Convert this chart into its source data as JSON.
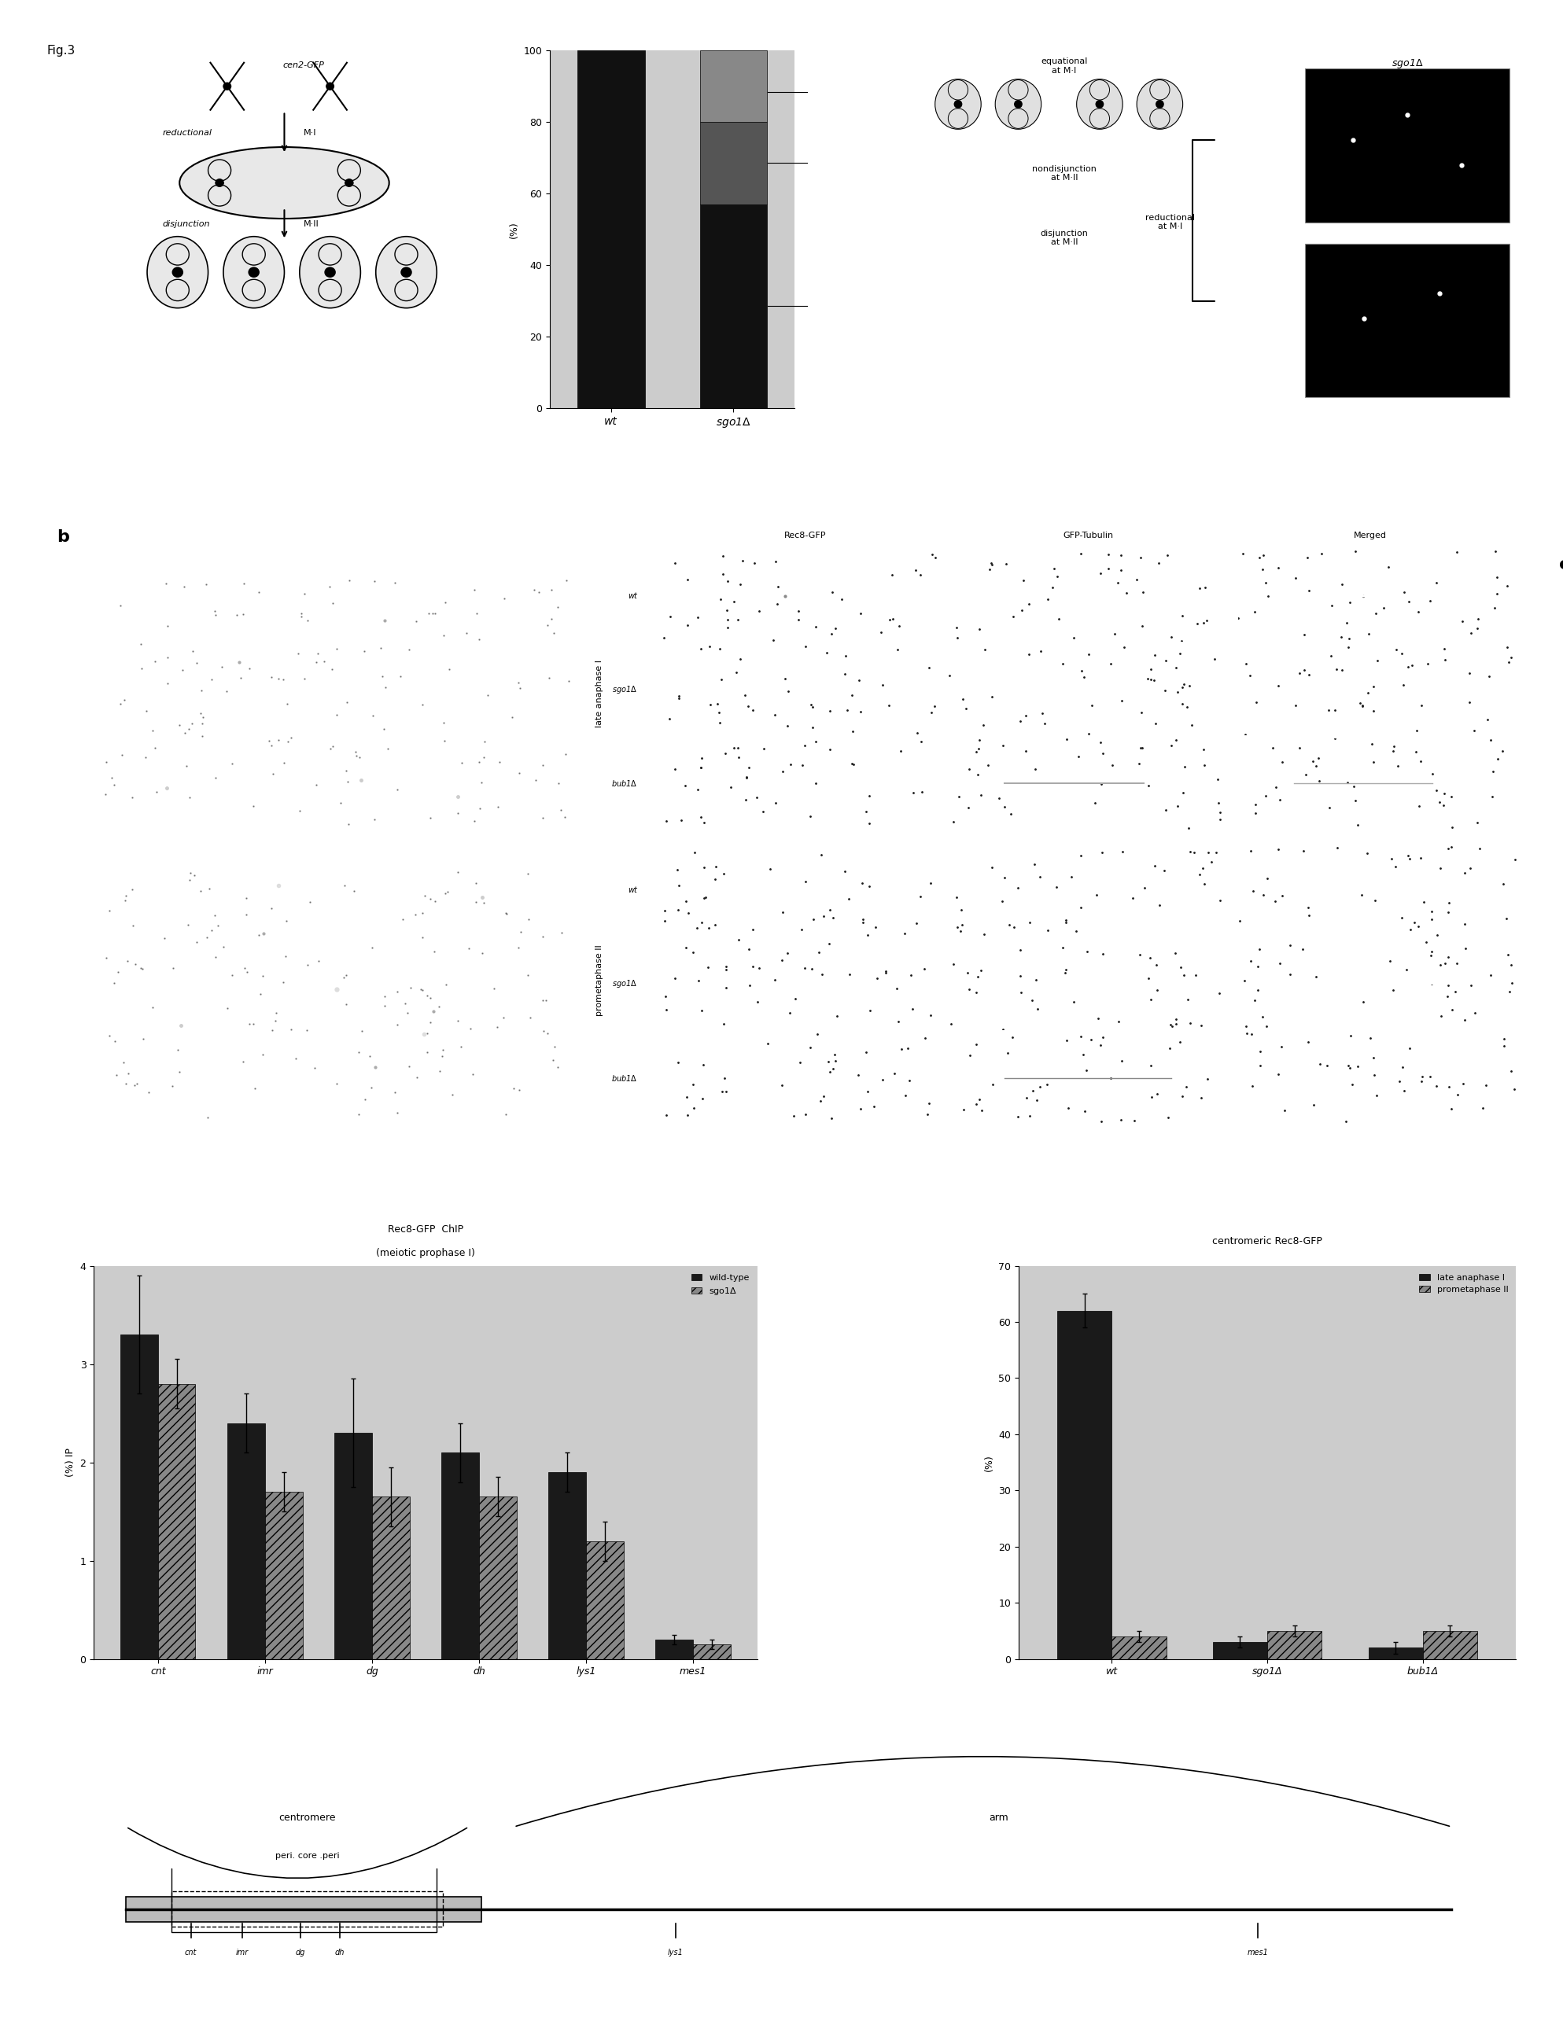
{
  "fig_label": "Fig.3",
  "panel_a_bar": {
    "categories": [
      "wt",
      "sgo1Δ"
    ],
    "yticks": [
      0,
      20,
      40,
      60,
      80,
      100
    ],
    "ylabel": "(%)"
  },
  "panel_d_chip": {
    "categories": [
      "cnt",
      "imr",
      "dg",
      "dh",
      "lys1",
      "mes1"
    ],
    "wt_values": [
      3.3,
      2.4,
      2.3,
      2.1,
      1.9,
      0.2
    ],
    "sgod_values": [
      2.8,
      1.7,
      1.65,
      1.65,
      1.2,
      0.15
    ],
    "wt_errors": [
      0.6,
      0.3,
      0.55,
      0.3,
      0.2,
      0.05
    ],
    "sgod_errors": [
      0.25,
      0.2,
      0.3,
      0.2,
      0.2,
      0.05
    ],
    "ylabel": "(%) IP",
    "title_line1": "Rec8-GFP  ChIP",
    "title_line2": "(meiotic prophase I)",
    "ylim": [
      0,
      4
    ],
    "yticks": [
      0,
      1,
      2,
      3,
      4
    ],
    "legend": [
      "wild-type",
      "sgo1Δ"
    ]
  },
  "panel_d_cen": {
    "categories": [
      "wt",
      "sgo1Δ",
      "bub1Δ"
    ],
    "late_values": [
      62,
      3,
      2
    ],
    "prom_values": [
      4,
      5,
      5
    ],
    "late_errors": [
      3,
      1,
      1
    ],
    "prom_errors": [
      1,
      1,
      1
    ],
    "ylabel": "(%)",
    "title": "centromeric Rec8-GFP",
    "ylim": [
      0,
      70
    ],
    "yticks": [
      0,
      10,
      20,
      30,
      40,
      50,
      60,
      70
    ],
    "legend": [
      "late anaphase I",
      "prometaphase II"
    ]
  },
  "background_color": "#ffffff",
  "panel_bg": "#000000",
  "gray_bg": "#cccccc"
}
